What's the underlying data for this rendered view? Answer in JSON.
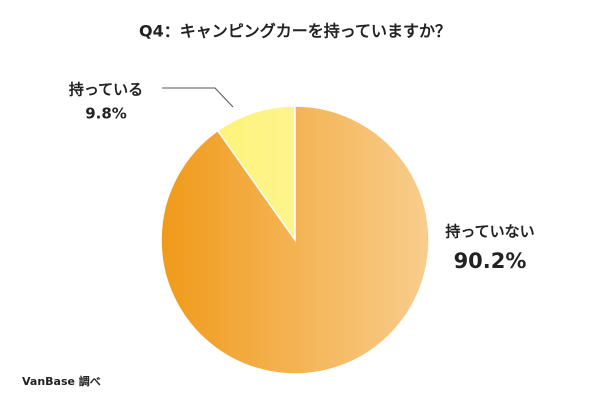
{
  "chart_data": {
    "type": "pie",
    "title": "Q4：キャンピングカーを持っていますか？",
    "categories": [
      "持っている",
      "持っていない"
    ],
    "values": [
      9.8,
      90.2
    ],
    "value_labels": [
      "9.8%",
      "90.2%"
    ],
    "colors": [
      "#fdf37a",
      "#f09a1a"
    ],
    "source": "VanBase 調べ"
  }
}
